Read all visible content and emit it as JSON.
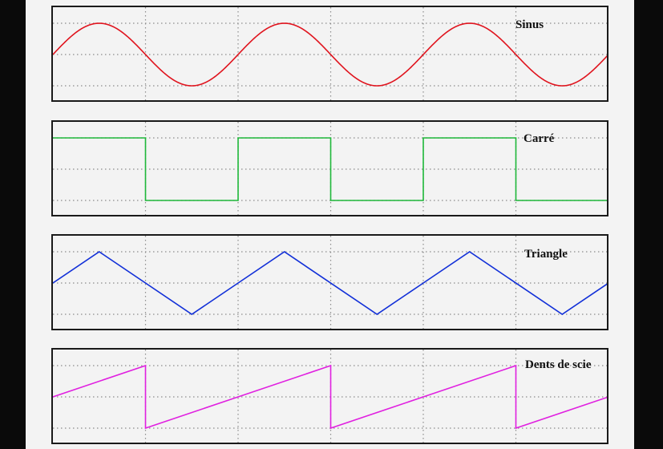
{
  "chart_data": [
    {
      "type": "line",
      "title": "Sinus",
      "color": "#e0141e",
      "shape": "sine",
      "periods": 3,
      "phase": 0,
      "ylim": [
        -1,
        1
      ],
      "grid": true
    },
    {
      "type": "line",
      "title": "Carré",
      "color": "#1fb83a",
      "shape": "square",
      "periods": 3,
      "phase": 0,
      "ylim": [
        -1,
        1
      ],
      "grid": true
    },
    {
      "type": "line",
      "title": "Triangle",
      "color": "#1230d8",
      "shape": "triangle",
      "periods": 3,
      "phase": 0,
      "ylim": [
        -1,
        1
      ],
      "grid": true
    },
    {
      "type": "line",
      "title": "Dents de scie",
      "color": "#e020e0",
      "shape": "sawtooth",
      "periods": 3,
      "phase": 0,
      "ylim": [
        -1,
        1
      ],
      "grid": true
    }
  ]
}
